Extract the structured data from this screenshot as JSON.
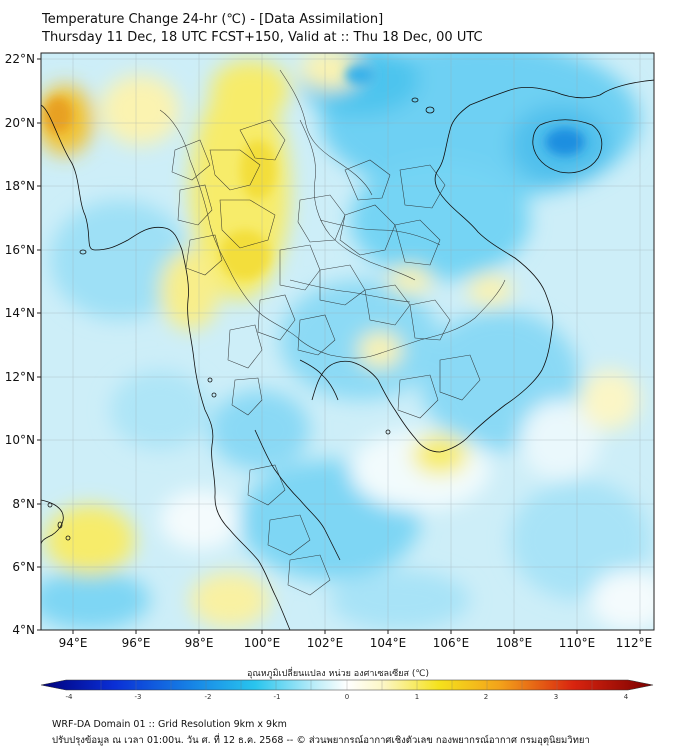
{
  "title": {
    "line1": "Temperature Change 24-hr (℃) - [Data Assimilation]",
    "line2": "Thursday 11 Dec, 18 UTC FCST+150, Valid at :: Thu 18 Dec, 00 UTC"
  },
  "map": {
    "lat_ticks": [
      "22°N",
      "20°N",
      "18°N",
      "16°N",
      "14°N",
      "12°N",
      "10°N",
      "8°N",
      "6°N",
      "4°N"
    ],
    "lon_ticks": [
      "94°E",
      "96°E",
      "98°E",
      "100°E",
      "102°E",
      "104°E",
      "106°E",
      "108°E",
      "110°E",
      "112°E"
    ],
    "lat_range": [
      4,
      22
    ],
    "lon_range": [
      93,
      112.5
    ]
  },
  "colorbar": {
    "label": "อุณหภูมิเปลี่ยนแปลง หน่วย องศาเซลเซียส (℃)",
    "ticks": [
      "-4",
      "-3",
      "-2",
      "-1",
      "0",
      "1",
      "2",
      "3",
      "4"
    ],
    "range": [
      -4,
      4
    ],
    "colors": {
      "low": "#00007a",
      "mid_low": "#29c5ee",
      "neutral": "#ffffff",
      "mid_high": "#f5e21c",
      "high": "#7a0000"
    }
  },
  "footer": {
    "line1": "WRF-DA Domain 01 :: Grid Resolution 9km x 9km",
    "line2": "ปรับปรุงข้อมูล ณ เวลา 01:00น. วัน ศ. ที่ 12 ธ.ค. 2568 -- © ส่วนพยากรณ์อากาศเชิงตัวเลข กองพยากรณ์อากาศ กรมอุตุนิยมวิทยา"
  }
}
